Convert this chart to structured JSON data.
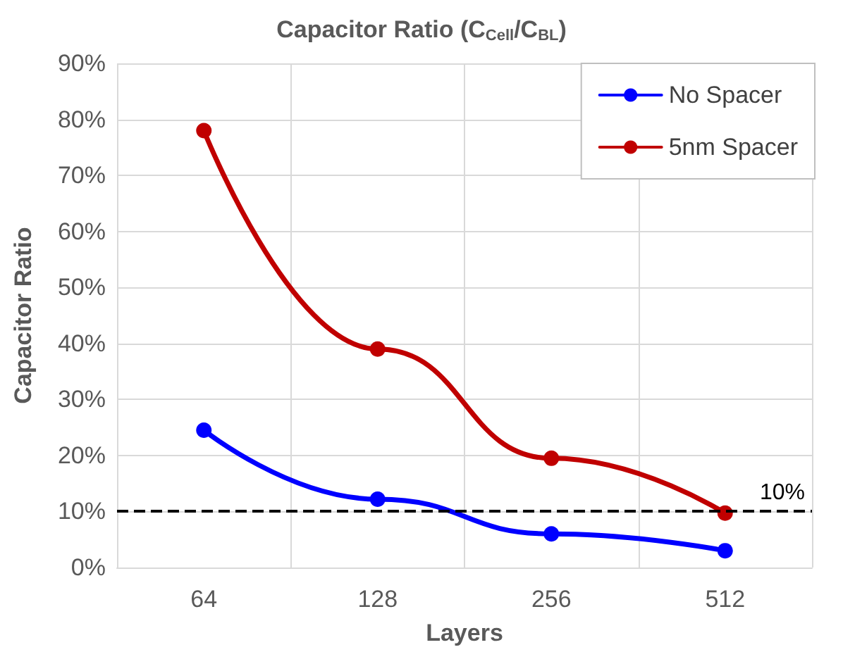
{
  "chart_data": {
    "type": "line",
    "title": "Capacitor Ratio (C$_{Cell}$/C$_{BL}$)",
    "xlabel": "Layers",
    "ylabel": "Capacitor Ratio",
    "categories": [
      "64",
      "128",
      "256",
      "512"
    ],
    "series": [
      {
        "name": "No Spacer",
        "color": "#0000ff",
        "values": [
          24.5,
          12.2,
          6,
          3
        ]
      },
      {
        "name": "5nm Spacer",
        "color": "#c00000",
        "values": [
          78,
          39,
          19.5,
          9.7
        ]
      }
    ],
    "ylim": [
      0,
      90
    ],
    "yticks": [
      {
        "value": 0,
        "label": "0%"
      },
      {
        "value": 10,
        "label": "10%"
      },
      {
        "value": 20,
        "label": "20%"
      },
      {
        "value": 30,
        "label": "30%"
      },
      {
        "value": 40,
        "label": "40%"
      },
      {
        "value": 50,
        "label": "50%"
      },
      {
        "value": 60,
        "label": "60%"
      },
      {
        "value": 70,
        "label": "70%"
      },
      {
        "value": 80,
        "label": "80%"
      },
      {
        "value": 90,
        "label": "90%"
      }
    ],
    "ref_lines": [
      {
        "axis": "y",
        "value": 10,
        "label": "10%",
        "color": "#000000",
        "line_style": "dashed"
      }
    ],
    "grid": true,
    "legend": "top right",
    "marker": "circle",
    "line_style": "solid"
  }
}
